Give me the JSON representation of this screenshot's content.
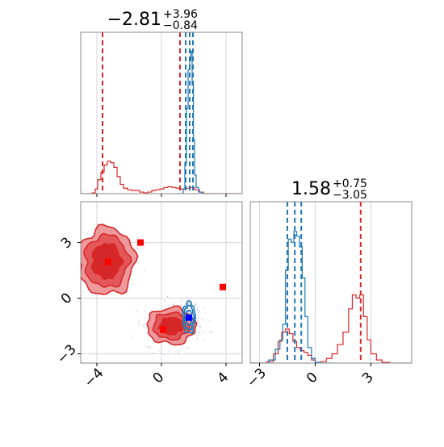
{
  "chart_data": {
    "type": "corner",
    "colors": {
      "blue": "#1f77b4",
      "red": "#d62728",
      "red_fill": "#e8787a",
      "marker_blue": "#0000ff",
      "marker_red": "#ff0000",
      "scatter": "#b9b9e6"
    },
    "panels": [
      {
        "kind": "histogram",
        "title": {
          "median": "−2.81",
          "upper": "+3.96",
          "lower": "−0.84"
        },
        "xlim": [
          -5,
          5
        ],
        "grid": true,
        "x_ticks": [
          -4,
          0,
          4
        ],
        "x_tick_labels": [],
        "red_quantiles": [
          -3.65,
          1.15
        ],
        "blue_quantiles": [
          1.5,
          1.75,
          1.95
        ],
        "red_series": {
          "name": "red",
          "points": [
            [
              -5.0,
              0.0
            ],
            [
              -4.6,
              0.0
            ],
            [
              -4.3,
              0.005
            ],
            [
              -4.1,
              0.03
            ],
            [
              -3.95,
              0.09
            ],
            [
              -3.75,
              0.14
            ],
            [
              -3.55,
              0.185
            ],
            [
              -3.35,
              0.21
            ],
            [
              -3.15,
              0.2
            ],
            [
              -2.95,
              0.17
            ],
            [
              -2.75,
              0.11
            ],
            [
              -2.55,
              0.06
            ],
            [
              -2.35,
              0.035
            ],
            [
              -2.1,
              0.025
            ],
            [
              -1.85,
              0.02
            ],
            [
              -1.6,
              0.02
            ],
            [
              -1.35,
              0.01
            ],
            [
              -1.1,
              0.005
            ],
            [
              -0.85,
              0.01
            ],
            [
              -0.6,
              0.02
            ],
            [
              -0.35,
              0.025
            ],
            [
              -0.1,
              0.03
            ],
            [
              0.15,
              0.04
            ],
            [
              0.4,
              0.045
            ],
            [
              0.65,
              0.04
            ],
            [
              0.9,
              0.035
            ],
            [
              1.15,
              0.03
            ],
            [
              1.45,
              0.035
            ],
            [
              1.75,
              0.04
            ],
            [
              2.05,
              0.025
            ],
            [
              2.35,
              0.01
            ],
            [
              2.6,
              0.0
            ],
            [
              5.0,
              0.0
            ]
          ]
        },
        "blue_series": {
          "name": "blue",
          "points": [
            [
              0.8,
              0.0
            ],
            [
              1.2,
              0.0
            ],
            [
              1.35,
              0.03
            ],
            [
              1.45,
              0.2
            ],
            [
              1.55,
              0.55
            ],
            [
              1.65,
              0.8
            ],
            [
              1.75,
              0.86
            ],
            [
              1.82,
              0.92
            ],
            [
              1.9,
              0.7
            ],
            [
              1.98,
              0.35
            ],
            [
              2.05,
              0.12
            ],
            [
              2.15,
              0.04
            ],
            [
              2.3,
              0.01
            ],
            [
              2.5,
              0.0
            ],
            [
              3.0,
              0.0
            ]
          ]
        }
      },
      {
        "kind": "scatter_contour",
        "xlim": [
          -5,
          5
        ],
        "ylim": [
          -3.5,
          5.2
        ],
        "grid": true,
        "x_ticks": [
          -4,
          0,
          4
        ],
        "y_ticks": [
          3,
          0,
          -3
        ],
        "x_tick_labels": [
          "−4",
          "0",
          "4"
        ],
        "y_tick_labels": [
          "3",
          "0",
          "−3"
        ],
        "red_modes": [
          {
            "center": [
              -3.4,
              2.0
            ],
            "levels": [
              0.9,
              1.35,
              1.75
            ]
          },
          {
            "center": [
              0.6,
              -1.5
            ],
            "levels": [
              0.7,
              1.1,
              1.5
            ]
          }
        ],
        "blue_mode": {
          "center": [
            1.7,
            -1.05
          ],
          "levels": [
            0.4,
            0.65,
            0.85
          ]
        },
        "red_markers": [
          [
            -3.3,
            1.95
          ],
          [
            -1.3,
            3.0
          ],
          [
            3.8,
            0.6
          ],
          [
            0.1,
            -1.7
          ]
        ],
        "blue_markers": [
          [
            1.7,
            -1.05
          ]
        ]
      },
      {
        "kind": "histogram",
        "title": {
          "median": "1.58",
          "upper": "+0.75",
          "lower": "−3.05"
        },
        "xlim": [
          -3.5,
          5.2
        ],
        "grid": true,
        "x_ticks": [
          -3,
          0,
          3
        ],
        "x_tick_labels": [
          "−3",
          "0",
          "3"
        ],
        "red_quantiles": [
          -1.5,
          2.45
        ],
        "blue_quantiles": [
          -1.5,
          -1.1,
          -0.75
        ],
        "red_series": {
          "name": "red",
          "points": [
            [
              -3.5,
              0.0
            ],
            [
              -3.0,
              0.0
            ],
            [
              -2.6,
              0.01
            ],
            [
              -2.25,
              0.06
            ],
            [
              -2.0,
              0.14
            ],
            [
              -1.8,
              0.2
            ],
            [
              -1.6,
              0.22
            ],
            [
              -1.4,
              0.19
            ],
            [
              -1.2,
              0.14
            ],
            [
              -1.0,
              0.1
            ],
            [
              -0.8,
              0.08
            ],
            [
              -0.6,
              0.07
            ],
            [
              -0.4,
              0.05
            ],
            [
              -0.2,
              0.02
            ],
            [
              0.0,
              0.005
            ],
            [
              0.3,
              0.01
            ],
            [
              0.6,
              0.03
            ],
            [
              0.9,
              0.06
            ],
            [
              1.2,
              0.12
            ],
            [
              1.5,
              0.2
            ],
            [
              1.8,
              0.35
            ],
            [
              2.0,
              0.44
            ],
            [
              2.2,
              0.42
            ],
            [
              2.4,
              0.44
            ],
            [
              2.6,
              0.3
            ],
            [
              2.8,
              0.15
            ],
            [
              3.0,
              0.06
            ],
            [
              3.3,
              0.02
            ],
            [
              3.6,
              0.005
            ],
            [
              4.0,
              0.0
            ],
            [
              5.2,
              0.0
            ]
          ]
        },
        "blue_series": {
          "name": "blue",
          "points": [
            [
              -3.5,
              0.0
            ],
            [
              -2.9,
              0.0
            ],
            [
              -2.5,
              0.02
            ],
            [
              -2.15,
              0.09
            ],
            [
              -1.9,
              0.15
            ],
            [
              -1.75,
              0.25
            ],
            [
              -1.6,
              0.6
            ],
            [
              -1.45,
              0.8
            ],
            [
              -1.3,
              0.78
            ],
            [
              -1.15,
              0.85
            ],
            [
              -1.0,
              0.82
            ],
            [
              -0.85,
              0.75
            ],
            [
              -0.7,
              0.55
            ],
            [
              -0.55,
              0.3
            ],
            [
              -0.4,
              0.1
            ],
            [
              -0.2,
              0.03
            ],
            [
              0.0,
              0.005
            ],
            [
              0.3,
              0.0
            ],
            [
              1.0,
              0.0
            ]
          ]
        }
      }
    ]
  }
}
